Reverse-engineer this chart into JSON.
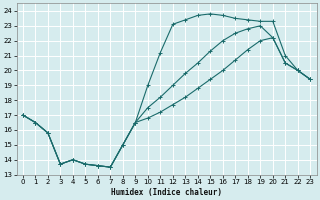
{
  "xlabel": "Humidex (Indice chaleur)",
  "bg_color": "#d6ecee",
  "grid_color": "#ffffff",
  "line_color": "#1a6b6b",
  "xlim": [
    -0.5,
    23.5
  ],
  "ylim": [
    13,
    24.5
  ],
  "yticks": [
    13,
    14,
    15,
    16,
    17,
    18,
    19,
    20,
    21,
    22,
    23,
    24
  ],
  "xticks": [
    0,
    1,
    2,
    3,
    4,
    5,
    6,
    7,
    8,
    9,
    10,
    11,
    12,
    13,
    14,
    15,
    16,
    17,
    18,
    19,
    20,
    21,
    22,
    23
  ],
  "line1_x": [
    0,
    1,
    2,
    3,
    4,
    5,
    6,
    7,
    8,
    9,
    10,
    11,
    12,
    13,
    14,
    15,
    16,
    17,
    18,
    19,
    20,
    21,
    22,
    23
  ],
  "line1_y": [
    17.0,
    16.5,
    15.8,
    13.7,
    14.0,
    13.7,
    13.6,
    13.5,
    15.0,
    16.5,
    19.0,
    21.2,
    23.1,
    23.4,
    23.7,
    23.8,
    23.7,
    23.5,
    23.4,
    23.3,
    23.3,
    21.0,
    20.0,
    19.4
  ],
  "line2_x": [
    0,
    1,
    2,
    3,
    4,
    5,
    6,
    7,
    8,
    9,
    10,
    11,
    12,
    13,
    14,
    15,
    16,
    17,
    18,
    19,
    20,
    21,
    22,
    23
  ],
  "line2_y": [
    17.0,
    16.5,
    15.8,
    13.7,
    14.0,
    13.7,
    13.6,
    13.5,
    15.0,
    16.5,
    17.5,
    18.2,
    19.0,
    19.8,
    20.5,
    21.3,
    22.0,
    22.5,
    22.8,
    23.0,
    22.2,
    20.5,
    20.0,
    19.4
  ],
  "line3_x": [
    0,
    1,
    2,
    3,
    4,
    5,
    6,
    7,
    9,
    10,
    11,
    12,
    13,
    14,
    15,
    16,
    17,
    18,
    19,
    20,
    21,
    22,
    23
  ],
  "line3_y": [
    17.0,
    16.5,
    15.8,
    13.7,
    14.0,
    13.7,
    13.6,
    13.5,
    16.5,
    16.8,
    17.2,
    17.7,
    18.2,
    18.8,
    19.4,
    20.0,
    20.7,
    21.4,
    22.0,
    22.2,
    20.5,
    20.0,
    19.4
  ]
}
